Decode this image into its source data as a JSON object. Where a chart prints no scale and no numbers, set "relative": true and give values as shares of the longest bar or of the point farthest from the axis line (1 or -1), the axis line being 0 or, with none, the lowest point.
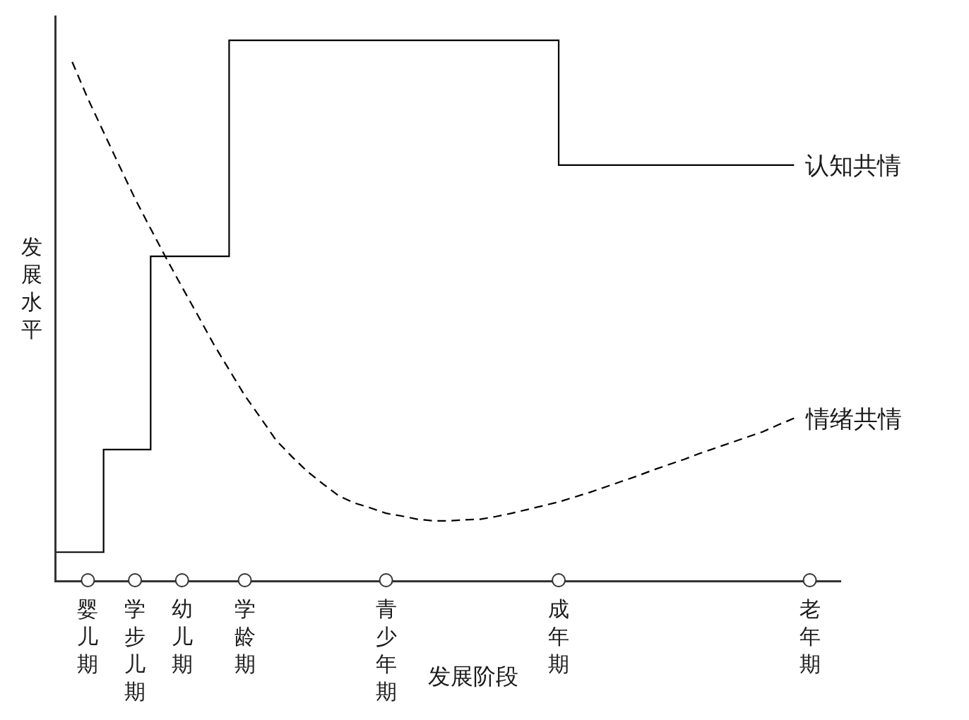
{
  "chart_data": {
    "type": "line",
    "xlabel": "发展阶段",
    "ylabel": "发展水平",
    "relative": true,
    "categories": [
      null,
      null,
      "婴儿期",
      null,
      null,
      "学步儿期",
      null,
      null,
      "幼儿期",
      null,
      null,
      null,
      "学龄期",
      null,
      null,
      null,
      null,
      null,
      null,
      null,
      null,
      "青少年期",
      null,
      null,
      null,
      null,
      null,
      null,
      null,
      null,
      null,
      null,
      "成年期",
      null,
      null,
      null,
      null,
      null,
      null,
      null,
      null,
      null,
      null,
      null,
      null,
      null,
      null,
      null,
      "老年期",
      null,
      null
    ],
    "series": [
      {
        "name": "认知共情",
        "type": "step",
        "color": "#000000",
        "line_style": "solid",
        "values": [
          0.052,
          0.052,
          0.052,
          0.242,
          0.242,
          0.242,
          0.6,
          0.6,
          0.6,
          0.6,
          0.6,
          1.0,
          1.0,
          1.0,
          1.0,
          1.0,
          1.0,
          1.0,
          1.0,
          1.0,
          1.0,
          1.0,
          1.0,
          1.0,
          1.0,
          1.0,
          1.0,
          1.0,
          1.0,
          1.0,
          1.0,
          1.0,
          0.769,
          0.769,
          0.769,
          0.769,
          0.769,
          0.769,
          0.769,
          0.769,
          0.769,
          0.769,
          0.769,
          0.769,
          0.769,
          0.769,
          0.769,
          0.769,
          null,
          null,
          null
        ]
      },
      {
        "name": "情绪共情",
        "color": "#000000",
        "line_style": "dashed",
        "values": [
          null,
          0.96,
          0.892,
          0.83,
          0.768,
          0.707,
          0.651,
          0.596,
          0.543,
          0.491,
          0.438,
          0.39,
          0.342,
          0.301,
          0.259,
          0.229,
          0.201,
          0.178,
          0.156,
          0.143,
          0.134,
          0.124,
          0.119,
          0.113,
          0.11,
          0.11,
          0.112,
          0.113,
          0.118,
          0.124,
          0.131,
          0.138,
          0.145,
          0.154,
          0.163,
          0.173,
          0.183,
          0.193,
          0.204,
          0.214,
          0.224,
          0.235,
          0.245,
          0.255,
          0.265,
          0.275,
          0.288,
          0.3,
          null,
          null,
          null
        ]
      }
    ]
  }
}
